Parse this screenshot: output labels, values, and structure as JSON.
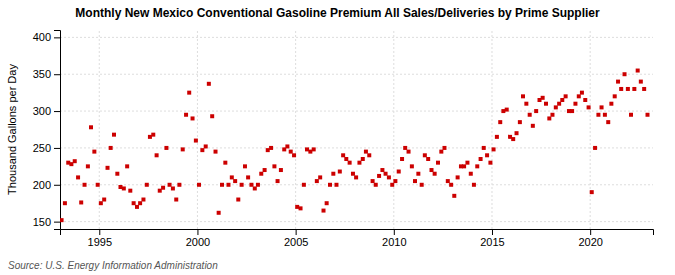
{
  "chart_data": {
    "type": "scatter",
    "title": "Monthly New Mexico Conventional Gasoline Premium All Sales/Deliveries by Prime Supplier",
    "ylabel": "Thousand Gallons per Day",
    "annotations": [
      "Source: U.S. Energy Information Administration"
    ],
    "color": "#cc0000",
    "marker": "square",
    "grid": true,
    "xlim": [
      1993.0,
      2023.2
    ],
    "ylim": [
      140,
      410
    ],
    "xticks": [
      1995,
      2000,
      2005,
      2010,
      2015,
      2020
    ],
    "yticks": [
      150,
      200,
      250,
      300,
      350,
      400
    ],
    "x": [
      1993.08,
      1993.25,
      1993.42,
      1993.58,
      1993.75,
      1993.92,
      1994.08,
      1994.25,
      1994.42,
      1994.58,
      1994.75,
      1994.92,
      1995.08,
      1995.25,
      1995.42,
      1995.58,
      1995.75,
      1995.92,
      1996.08,
      1996.25,
      1996.42,
      1996.58,
      1996.75,
      1996.92,
      1997.08,
      1997.25,
      1997.42,
      1997.58,
      1997.75,
      1997.92,
      1998.08,
      1998.25,
      1998.42,
      1998.58,
      1998.75,
      1998.92,
      1999.08,
      1999.25,
      1999.42,
      1999.58,
      1999.75,
      1999.92,
      2000.08,
      2000.25,
      2000.42,
      2000.58,
      2000.75,
      2000.92,
      2001.08,
      2001.25,
      2001.42,
      2001.58,
      2001.75,
      2001.92,
      2002.08,
      2002.25,
      2002.42,
      2002.58,
      2002.75,
      2002.92,
      2003.08,
      2003.25,
      2003.42,
      2003.58,
      2003.75,
      2003.92,
      2004.08,
      2004.25,
      2004.42,
      2004.58,
      2004.75,
      2004.92,
      2005.08,
      2005.25,
      2005.42,
      2005.58,
      2005.75,
      2005.92,
      2006.08,
      2006.25,
      2006.42,
      2006.58,
      2006.75,
      2006.92,
      2007.08,
      2007.25,
      2007.42,
      2007.58,
      2007.75,
      2007.92,
      2008.08,
      2008.25,
      2008.42,
      2008.58,
      2008.75,
      2008.92,
      2009.08,
      2009.25,
      2009.42,
      2009.58,
      2009.75,
      2009.92,
      2010.08,
      2010.25,
      2010.42,
      2010.58,
      2010.75,
      2010.92,
      2011.08,
      2011.25,
      2011.42,
      2011.58,
      2011.75,
      2011.92,
      2012.08,
      2012.25,
      2012.42,
      2012.58,
      2012.75,
      2012.92,
      2013.08,
      2013.25,
      2013.42,
      2013.58,
      2013.75,
      2013.92,
      2014.08,
      2014.25,
      2014.42,
      2014.58,
      2014.75,
      2014.92,
      2015.08,
      2015.25,
      2015.42,
      2015.58,
      2015.75,
      2015.92,
      2016.08,
      2016.25,
      2016.42,
      2016.58,
      2016.75,
      2016.92,
      2017.08,
      2017.25,
      2017.42,
      2017.58,
      2017.75,
      2017.92,
      2018.08,
      2018.25,
      2018.42,
      2018.58,
      2018.75,
      2018.92,
      2019.08,
      2019.25,
      2019.42,
      2019.58,
      2019.75,
      2019.92,
      2020.08,
      2020.25,
      2020.42,
      2020.58,
      2020.75,
      2020.92,
      2021.08,
      2021.25,
      2021.42,
      2021.58,
      2021.75,
      2021.92,
      2022.08,
      2022.25,
      2022.42,
      2022.58,
      2022.75,
      2022.92
    ],
    "values": [
      152,
      175,
      230,
      228,
      232,
      210,
      176,
      200,
      225,
      278,
      245,
      200,
      175,
      180,
      223,
      250,
      268,
      215,
      197,
      195,
      225,
      192,
      175,
      170,
      175,
      180,
      200,
      265,
      268,
      240,
      192,
      196,
      250,
      200,
      195,
      180,
      200,
      248,
      295,
      325,
      290,
      260,
      200,
      247,
      252,
      337,
      293,
      245,
      162,
      200,
      230,
      200,
      210,
      205,
      180,
      200,
      225,
      210,
      200,
      195,
      200,
      215,
      220,
      247,
      250,
      225,
      205,
      220,
      248,
      252,
      245,
      240,
      170,
      168,
      200,
      248,
      245,
      248,
      205,
      210,
      165,
      175,
      200,
      215,
      200,
      218,
      240,
      235,
      230,
      215,
      210,
      230,
      235,
      245,
      240,
      205,
      200,
      212,
      220,
      215,
      210,
      200,
      205,
      218,
      235,
      250,
      245,
      225,
      205,
      215,
      200,
      240,
      235,
      220,
      215,
      230,
      245,
      250,
      205,
      200,
      185,
      210,
      225,
      225,
      230,
      215,
      200,
      225,
      235,
      250,
      240,
      230,
      248,
      265,
      285,
      300,
      302,
      265,
      262,
      270,
      285,
      320,
      310,
      295,
      280,
      300,
      315,
      318,
      310,
      290,
      295,
      305,
      310,
      315,
      320,
      300,
      300,
      310,
      320,
      325,
      315,
      305,
      190,
      250,
      295,
      305,
      295,
      285,
      310,
      320,
      340,
      330,
      350,
      330,
      295,
      330,
      355,
      340,
      330,
      295
    ]
  }
}
